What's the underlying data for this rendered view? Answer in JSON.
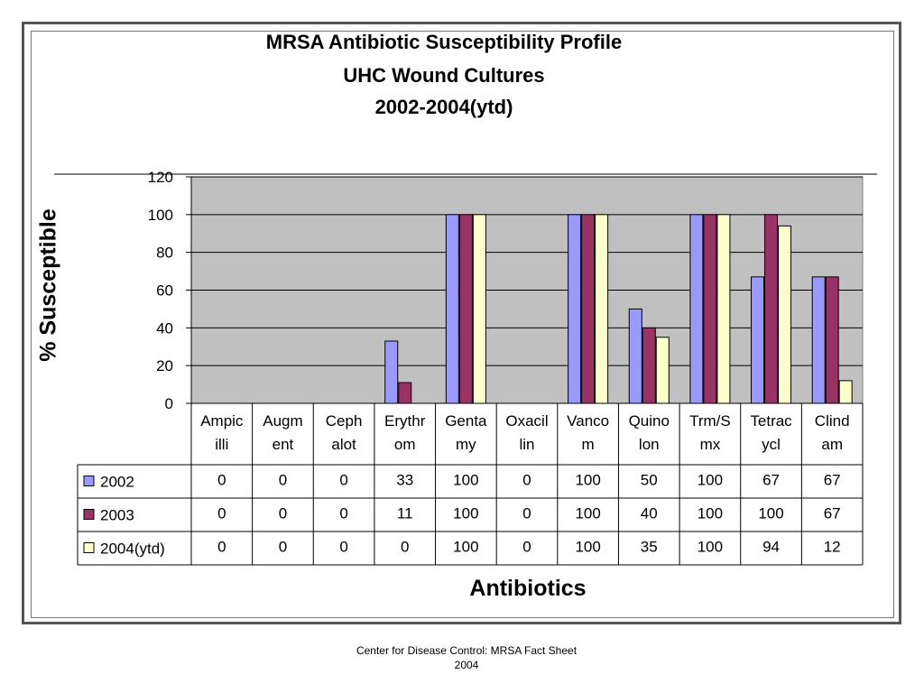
{
  "chart_data": {
    "type": "bar",
    "title": [
      "MRSA Antibiotic Susceptibility Profile",
      "UHC Wound Cultures",
      "2002-2004(ytd)"
    ],
    "xlabel": "Antibiotics",
    "ylabel": "% Susceptible",
    "ylim": [
      0,
      120
    ],
    "yticks": [
      0,
      20,
      40,
      60,
      80,
      100,
      120
    ],
    "grid": true,
    "legend": "data table (left column)",
    "categories": [
      [
        "Ampic",
        "illi"
      ],
      [
        "Augm",
        "ent"
      ],
      [
        "Ceph",
        "alot"
      ],
      [
        "Erythr",
        "om"
      ],
      [
        "Genta",
        "my"
      ],
      [
        "Oxacil",
        "lin"
      ],
      [
        "Vanco",
        "m"
      ],
      [
        "Quino",
        "lon"
      ],
      [
        "Trm/S",
        "mx"
      ],
      [
        "Tetrac",
        "ycl"
      ],
      [
        "Clind",
        "am"
      ]
    ],
    "series": [
      {
        "name": "2002",
        "color": "#9999ff",
        "values": [
          0,
          0,
          0,
          33,
          100,
          0,
          100,
          50,
          100,
          67,
          67
        ]
      },
      {
        "name": "2003",
        "color": "#993366",
        "values": [
          0,
          0,
          0,
          11,
          100,
          0,
          100,
          40,
          100,
          100,
          67
        ]
      },
      {
        "name": "2004(ytd)",
        "color": "#ffffcc",
        "values": [
          0,
          0,
          0,
          0,
          100,
          0,
          100,
          35,
          100,
          94,
          12
        ]
      }
    ],
    "plot_background": "#c0c0c0"
  },
  "footer": {
    "line1": "Center for Disease Control: MRSA Fact Sheet",
    "line2": "2004"
  }
}
